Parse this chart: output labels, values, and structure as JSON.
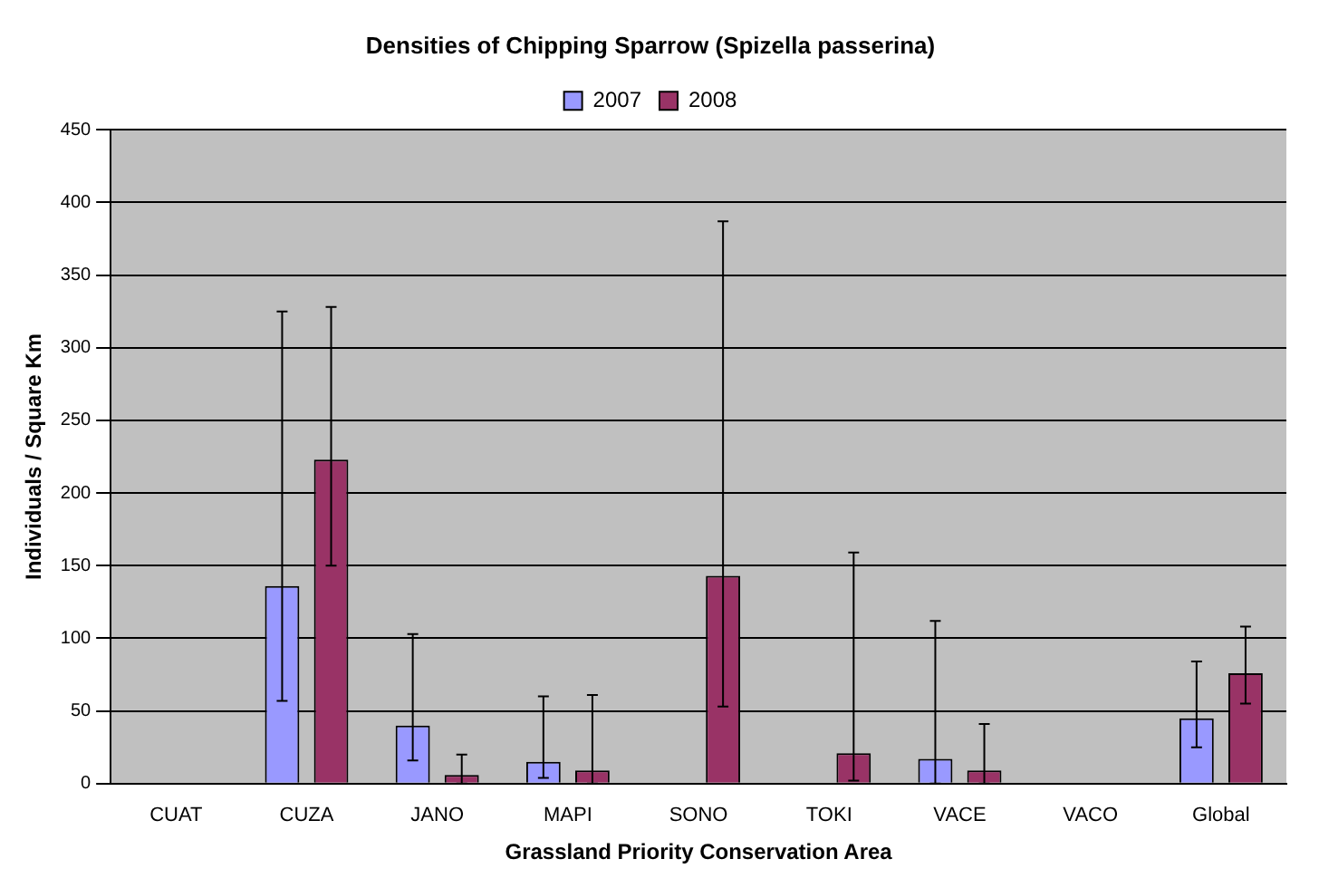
{
  "chart_data": {
    "type": "bar",
    "title": "Densities of Chipping Sparrow (Spizella passerina)",
    "xlabel": "Grassland Priority Conservation Area",
    "ylabel": "Individuals / Square Km",
    "categories": [
      "CUAT",
      "CUZA",
      "JANO",
      "MAPI",
      "SONO",
      "TOKI",
      "VACE",
      "VACO",
      "Global"
    ],
    "series": [
      {
        "name": "2007",
        "color": "#9999ff",
        "values": [
          null,
          136,
          40,
          15,
          null,
          null,
          17,
          null,
          45
        ],
        "errors": [
          null,
          [
            57,
            325
          ],
          [
            16,
            103
          ],
          [
            4,
            60
          ],
          null,
          null,
          [
            0,
            112
          ],
          null,
          [
            25,
            84
          ]
        ]
      },
      {
        "name": "2008",
        "color": "#993366",
        "values": [
          null,
          223,
          6,
          9,
          143,
          21,
          9,
          null,
          76
        ],
        "errors": [
          null,
          [
            150,
            328
          ],
          [
            0,
            20
          ],
          [
            0,
            61
          ],
          [
            53,
            387
          ],
          [
            2,
            159
          ],
          [
            0,
            41
          ],
          null,
          [
            55,
            108
          ]
        ]
      }
    ],
    "ylim": [
      0,
      450
    ],
    "yticks": [
      0,
      50,
      100,
      150,
      200,
      250,
      300,
      350,
      400,
      450
    ],
    "grid": "y",
    "legend": "top"
  }
}
